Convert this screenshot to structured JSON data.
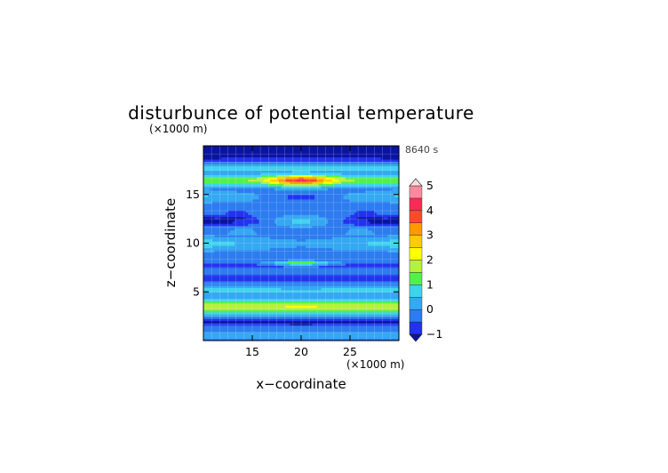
{
  "chart_data": {
    "type": "heatmap",
    "title": "disturbunce of potential temperature",
    "time_label": "8640 s",
    "xlabel": "x−coordinate",
    "ylabel": "z−coordinate",
    "x_unit_label": "(×1000 m)",
    "y_unit_label": "(×1000 m)",
    "xlim": [
      10,
      30
    ],
    "ylim": [
      0,
      20
    ],
    "x_ticks": [
      15,
      20,
      25
    ],
    "y_ticks": [
      5,
      10,
      15
    ],
    "grid": true,
    "colorbar": {
      "levels": [
        -1,
        -0.5,
        0,
        0.5,
        1,
        1.5,
        2,
        2.5,
        3,
        3.5,
        4,
        4.5,
        5
      ],
      "tick_labels": [
        "−1",
        "0",
        "1",
        "2",
        "3",
        "4",
        "5"
      ],
      "tick_values": [
        -1,
        0,
        1,
        2,
        3,
        4,
        5
      ],
      "colors": [
        "#2233ee",
        "#2d7cf0",
        "#35a8f2",
        "#40d3ee",
        "#54f04a",
        "#b6f040",
        "#ffff00",
        "#ffcc00",
        "#ff9a00",
        "#ff4a28",
        "#ff2a55",
        "#ff8aa0"
      ],
      "under_color": "#0a14a0",
      "over_color": "#ffdddd"
    },
    "bands": [
      {
        "z": 0.6,
        "amp": 0.4,
        "width": 0.4,
        "edge_boost": 0,
        "center_boost": 0
      },
      {
        "z": 1.9,
        "amp": -0.9,
        "width": 0.35,
        "edge_boost": 0,
        "center_boost": -0.3
      },
      {
        "z": 3.5,
        "amp": 1.9,
        "width": 0.75,
        "edge_boost": 0.1,
        "center_boost": 0.3
      },
      {
        "z": 5.2,
        "amp": 0.9,
        "width": 0.35,
        "edge_boost": 0.1,
        "center_boost": -0.2
      },
      {
        "z": 6.4,
        "amp": -0.6,
        "width": 0.5,
        "edge_boost": 0,
        "center_boost": 0
      },
      {
        "z": 7.9,
        "amp": -1.0,
        "width": 0.45,
        "edge_boost": 0,
        "center_boost": 0.3
      },
      {
        "z": 8.0,
        "amp": 0.6,
        "width": 0.25,
        "edge_boost": 0,
        "center_boost": 1.6
      },
      {
        "z": 10.0,
        "amp": 0.2,
        "width": 0.6,
        "edge_boost": 0.8,
        "center_boost": 0
      },
      {
        "z": 12.3,
        "amp": -0.2,
        "width": 0.5,
        "edge_boost": -1.2,
        "center_boost": 1.0
      },
      {
        "z": 14.8,
        "amp": 0.1,
        "width": 0.5,
        "edge_boost": 0.6,
        "center_boost": -0.6
      },
      {
        "z": 16.5,
        "amp": 1.2,
        "width": 0.55,
        "edge_boost": 0.4,
        "center_boost": 3.0
      },
      {
        "z": 17.8,
        "amp": 0.7,
        "width": 0.5,
        "edge_boost": 0.3,
        "center_boost": 0
      },
      {
        "z": 19.5,
        "amp": -1.6,
        "width": 0.9,
        "edge_boost": -0.2,
        "center_boost": 0
      }
    ]
  }
}
